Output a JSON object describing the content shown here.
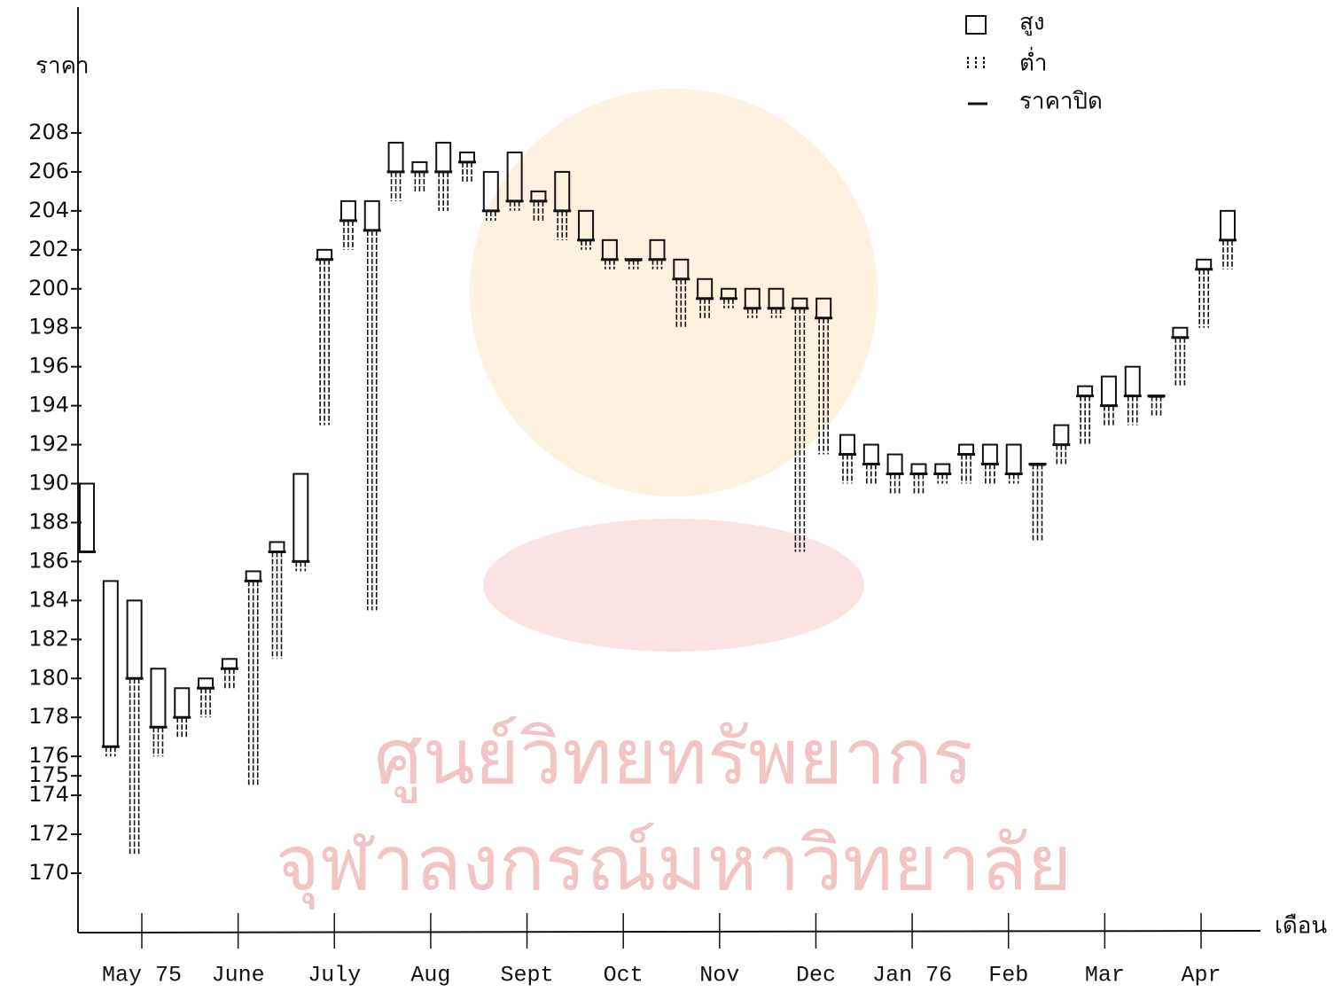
{
  "chart_data": {
    "type": "hlc",
    "ylabel": "ราคา",
    "xlabel": "เดือน",
    "categories": [
      "May 75",
      "June",
      "July",
      "Aug",
      "Sept",
      "Oct",
      "Nov",
      "Dec",
      "Jan 76",
      "Feb",
      "Mar",
      "Apr"
    ],
    "legend": {
      "high": "สูง",
      "low": "ต่ำ",
      "close": "ราคาปิด"
    },
    "watermark": [
      "ศูนย์วิทยทรัพยากร",
      "จุฬาลงกรณ์มหาวิทยาลัย"
    ],
    "color": "#111111",
    "ylim": [
      168,
      210
    ],
    "yticks": [
      208,
      206,
      204,
      202,
      200,
      198,
      196,
      194,
      192,
      190,
      188,
      186,
      184,
      182,
      180,
      178,
      176,
      175,
      174,
      172,
      170
    ],
    "high": [
      190,
      185,
      184,
      180.5,
      179.5,
      180,
      181,
      185.5,
      187,
      190.5,
      202,
      204.5,
      204.5,
      207.5,
      206.5,
      207.5,
      207,
      206,
      207,
      205,
      206,
      204,
      202.5,
      201.5,
      202.5,
      201.5,
      200.5,
      200,
      200,
      200,
      199.5,
      199.5,
      192.5,
      192,
      191.5,
      191,
      191,
      192,
      192,
      192,
      191,
      193,
      195,
      195.5,
      196,
      194.5,
      198,
      201.5,
      204
    ],
    "low": [
      186.5,
      176,
      171,
      176,
      177,
      178,
      179.5,
      174.5,
      181,
      185.5,
      193,
      202,
      183.5,
      204.5,
      205,
      204,
      205.5,
      203.5,
      204,
      203.5,
      202.5,
      202,
      201,
      201,
      201,
      198,
      198.5,
      199,
      198.5,
      198.5,
      186.5,
      191.5,
      190,
      190,
      189.5,
      189.5,
      190,
      190,
      190,
      190,
      187,
      191,
      192,
      193,
      193,
      193.5,
      195,
      198,
      201
    ],
    "close": [
      186.5,
      176.5,
      180,
      177.5,
      178,
      179.5,
      180.5,
      185,
      186.5,
      186,
      201.5,
      203.5,
      203,
      206,
      206,
      206,
      206.5,
      204,
      204.5,
      204.5,
      204,
      202.5,
      201.5,
      201.5,
      201.5,
      200.5,
      199.5,
      199.5,
      199,
      199,
      199,
      198.5,
      191.5,
      191,
      190.5,
      190.5,
      190.5,
      191.5,
      191,
      190.5,
      191,
      192,
      194.5,
      194,
      194.5,
      194.5,
      197.5,
      201,
      202.5
    ]
  }
}
